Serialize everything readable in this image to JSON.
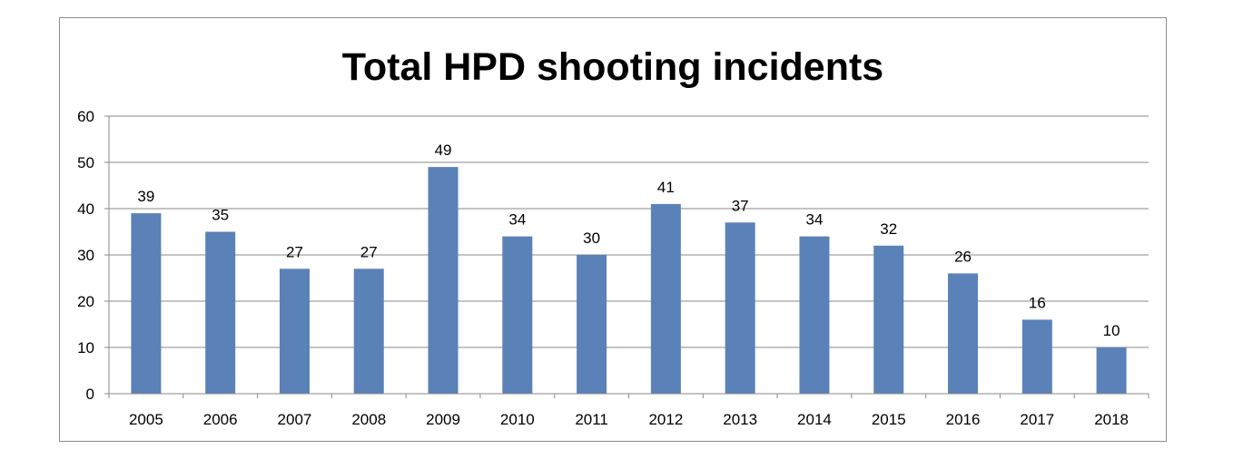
{
  "chart_data": {
    "type": "bar",
    "title": "Total HPD shooting incidents",
    "xlabel": "",
    "ylabel": "",
    "categories": [
      "2005",
      "2006",
      "2007",
      "2008",
      "2009",
      "2010",
      "2011",
      "2012",
      "2013",
      "2014",
      "2015",
      "2016",
      "2017",
      "2018"
    ],
    "values": [
      39,
      35,
      27,
      27,
      49,
      34,
      30,
      41,
      37,
      34,
      32,
      26,
      16,
      10
    ],
    "ylim": [
      0,
      60
    ],
    "yticks": [
      0,
      10,
      20,
      30,
      40,
      50,
      60
    ],
    "grid": true,
    "legend": "none",
    "data_labels": true,
    "bar_color": "#5b81b9",
    "grid_color": "#888888"
  }
}
